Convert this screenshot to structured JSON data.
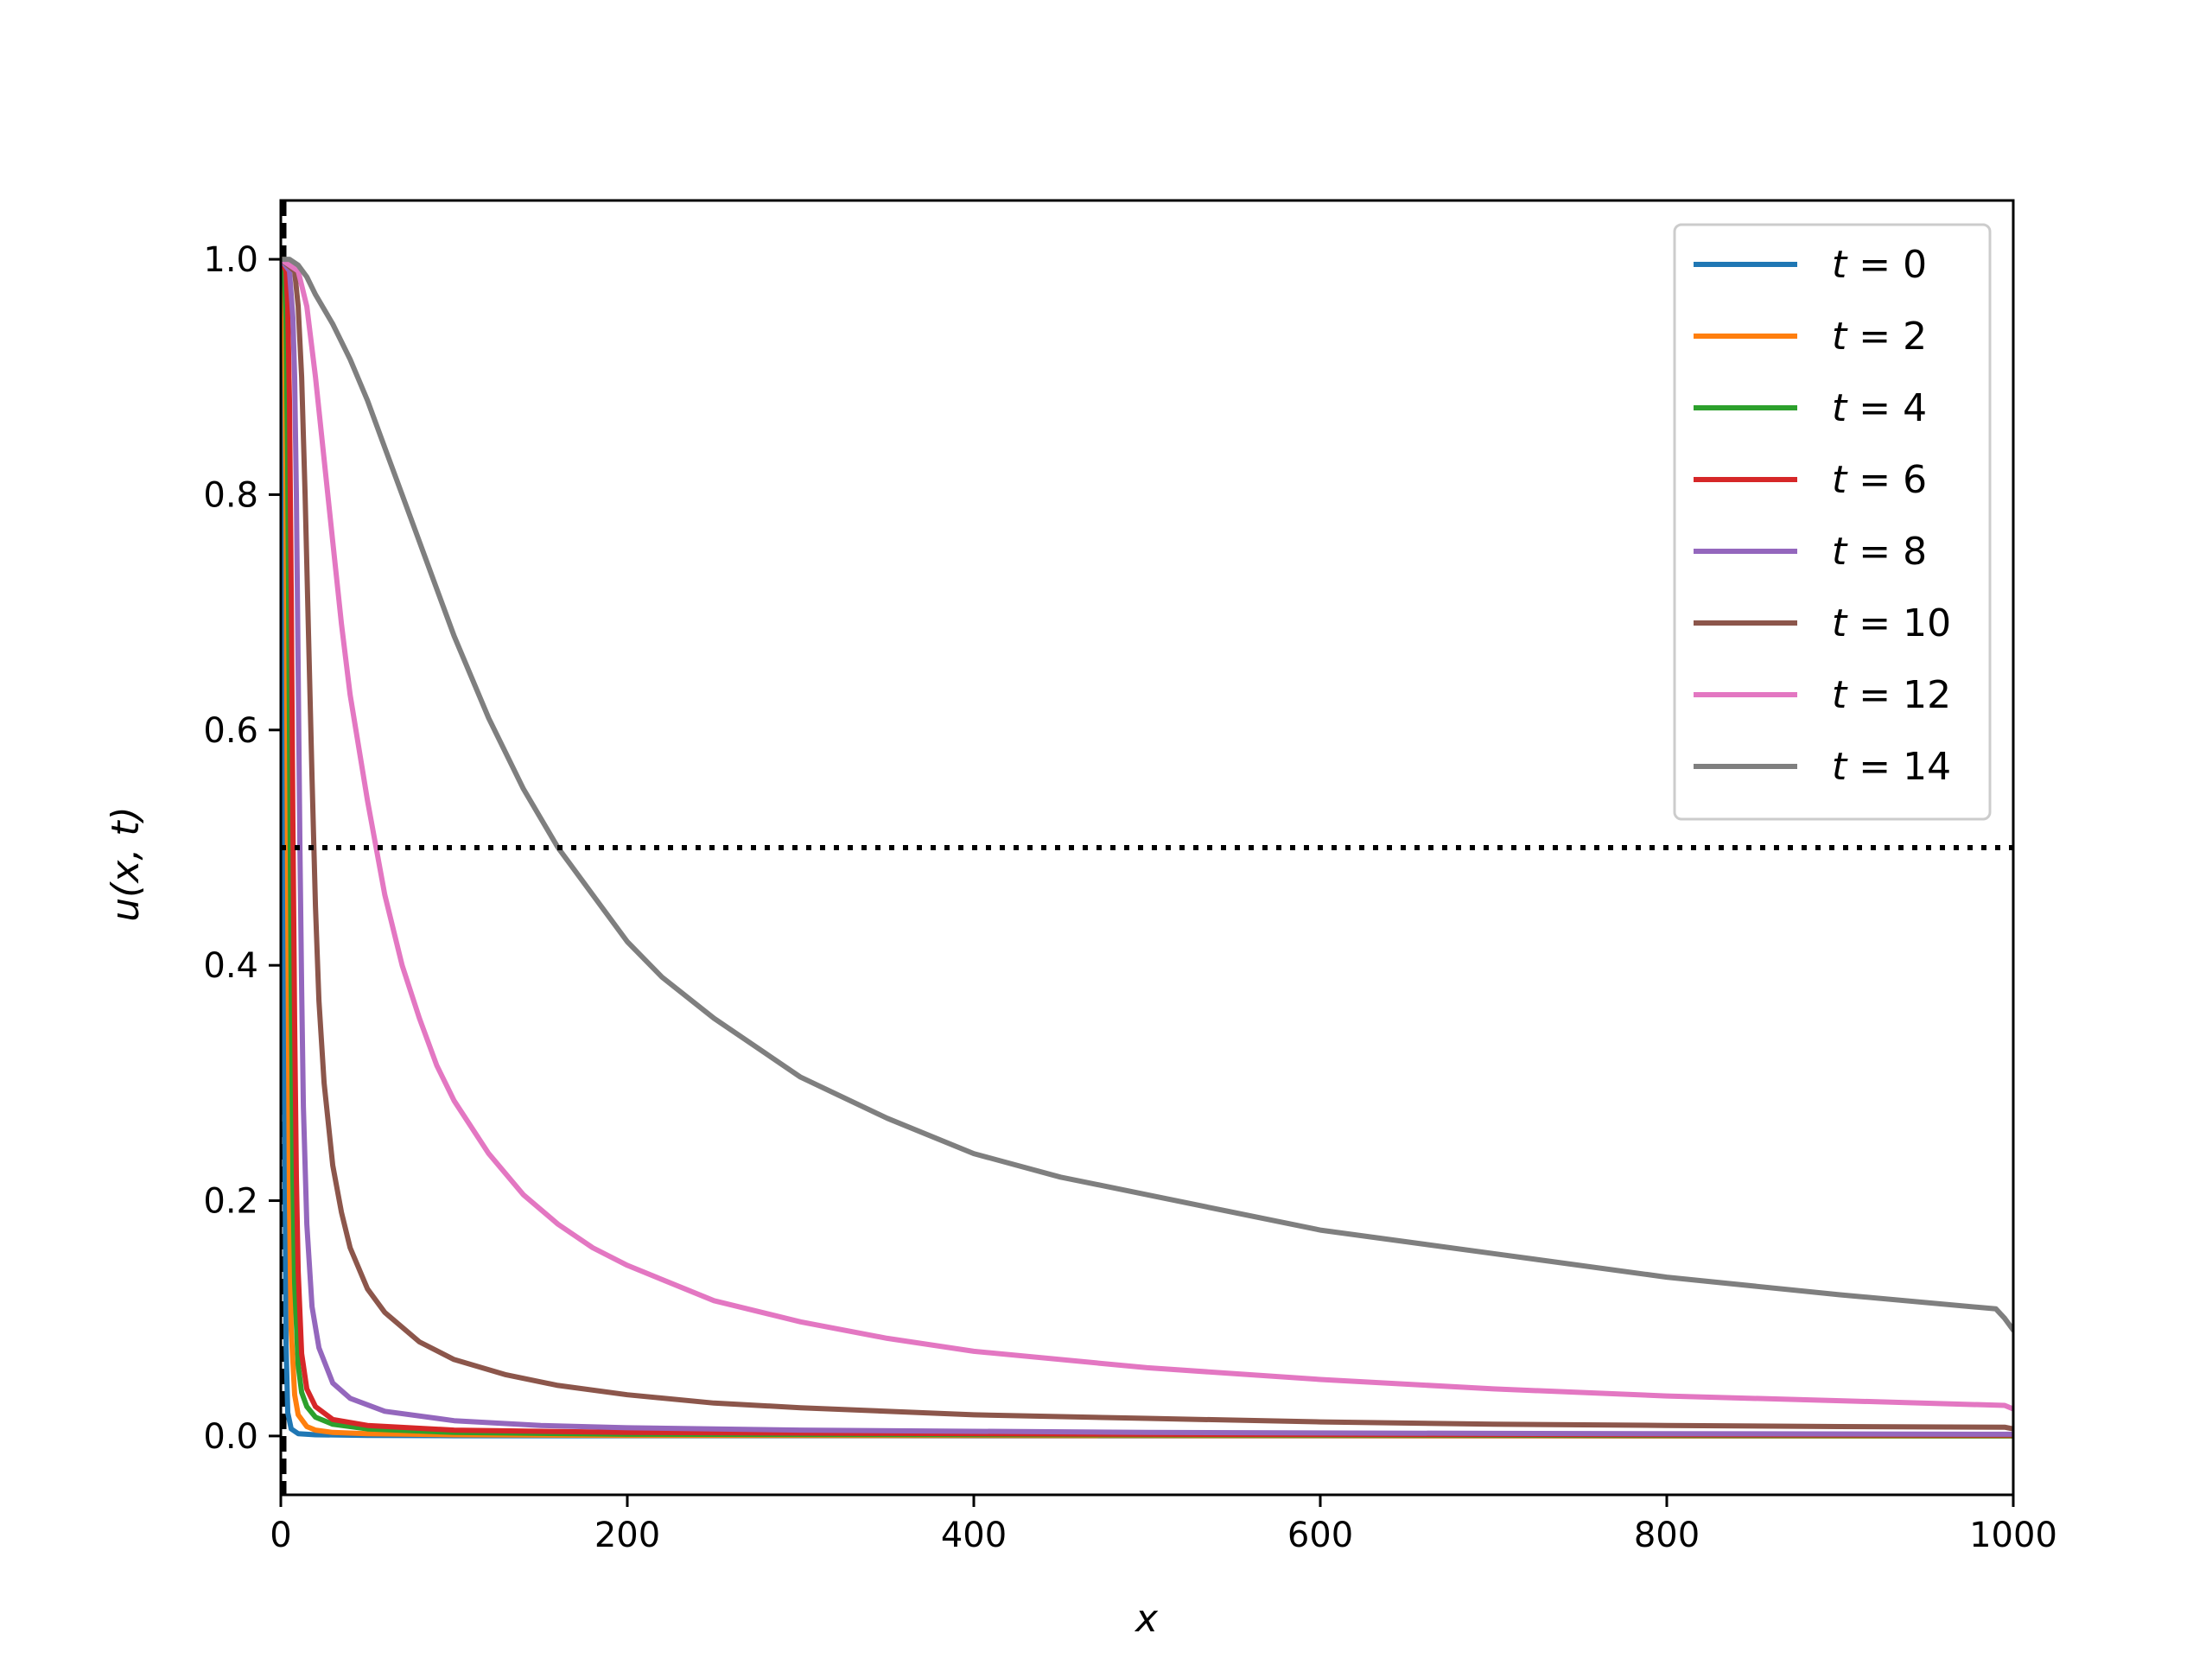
{
  "chart_data": {
    "type": "line",
    "title": "",
    "xlabel": "x",
    "ylabel": "u(x, t)",
    "xlim": [
      0,
      1000
    ],
    "ylim": [
      -0.05,
      1.05
    ],
    "xticks": [
      0,
      200,
      400,
      600,
      800,
      1000
    ],
    "xtick_labels": [
      "0",
      "200",
      "400",
      "600",
      "800",
      "1000"
    ],
    "yticks": [
      0.0,
      0.2,
      0.4,
      0.6,
      0.8,
      1.0
    ],
    "ytick_labels": [
      "0.0",
      "0.2",
      "0.4",
      "0.6",
      "0.8",
      "1.0"
    ],
    "grid": false,
    "legend_position": "upper right",
    "reference_line": {
      "y": 0.5,
      "style": "dotted",
      "color": "#000000"
    },
    "series": [
      {
        "name": "t = 0",
        "color": "#1f77b4",
        "x": [
          0,
          1,
          2,
          3,
          4,
          6,
          10,
          20,
          50,
          100,
          1000
        ],
        "y": [
          1.0,
          0.9,
          0.35,
          0.08,
          0.02,
          0.006,
          0.002,
          0.001,
          0.0005,
          0.0002,
          0.0
        ]
      },
      {
        "name": "t = 2",
        "color": "#ff7f0e",
        "x": [
          0,
          1,
          2,
          3,
          4,
          5,
          6,
          8,
          10,
          15,
          20,
          30,
          50,
          100,
          200,
          1000
        ],
        "y": [
          1.0,
          1.0,
          0.97,
          0.8,
          0.45,
          0.2,
          0.09,
          0.035,
          0.018,
          0.008,
          0.005,
          0.003,
          0.002,
          0.001,
          0.0005,
          0.0
        ]
      },
      {
        "name": "t = 4",
        "color": "#2ca02c",
        "x": [
          0,
          2,
          3,
          4,
          5,
          6,
          7,
          8,
          10,
          12,
          15,
          20,
          30,
          50,
          100,
          200,
          1000
        ],
        "y": [
          1.0,
          0.99,
          0.95,
          0.82,
          0.6,
          0.38,
          0.22,
          0.13,
          0.06,
          0.037,
          0.025,
          0.016,
          0.01,
          0.006,
          0.003,
          0.0015,
          0.0003
        ]
      },
      {
        "name": "t = 6",
        "color": "#d62728",
        "x": [
          0,
          3,
          4,
          5,
          6,
          7,
          8,
          9,
          10,
          12,
          15,
          20,
          30,
          50,
          100,
          200,
          500,
          1000
        ],
        "y": [
          1.0,
          0.99,
          0.96,
          0.88,
          0.72,
          0.52,
          0.35,
          0.22,
          0.14,
          0.07,
          0.04,
          0.025,
          0.014,
          0.009,
          0.005,
          0.003,
          0.0015,
          0.0008
        ]
      },
      {
        "name": "t = 8",
        "color": "#9467bd",
        "x": [
          0,
          5,
          7,
          8,
          9,
          10,
          11,
          12,
          13,
          15,
          18,
          22,
          30,
          40,
          60,
          100,
          150,
          200,
          300,
          500,
          700,
          1000
        ],
        "y": [
          1.0,
          0.99,
          0.95,
          0.9,
          0.8,
          0.65,
          0.5,
          0.38,
          0.28,
          0.18,
          0.11,
          0.075,
          0.045,
          0.032,
          0.021,
          0.013,
          0.009,
          0.007,
          0.005,
          0.003,
          0.0022,
          0.0015
        ]
      },
      {
        "name": "t = 10",
        "color": "#8c564b",
        "x": [
          0,
          8,
          10,
          12,
          14,
          16,
          18,
          20,
          22,
          25,
          30,
          35,
          40,
          50,
          60,
          80,
          100,
          130,
          160,
          200,
          250,
          300,
          400,
          500,
          600,
          700,
          800,
          900,
          995,
          1000
        ],
        "y": [
          1.0,
          0.99,
          0.96,
          0.9,
          0.8,
          0.68,
          0.56,
          0.45,
          0.37,
          0.3,
          0.23,
          0.19,
          0.16,
          0.125,
          0.105,
          0.08,
          0.065,
          0.052,
          0.043,
          0.035,
          0.028,
          0.024,
          0.018,
          0.015,
          0.012,
          0.01,
          0.009,
          0.008,
          0.0075,
          0.006
        ]
      },
      {
        "name": "t = 12",
        "color": "#e377c2",
        "x": [
          0,
          10,
          15,
          20,
          25,
          30,
          35,
          40,
          50,
          60,
          70,
          80,
          90,
          100,
          120,
          140,
          160,
          180,
          200,
          250,
          300,
          350,
          400,
          500,
          600,
          700,
          800,
          900,
          995,
          1000
        ],
        "y": [
          1.0,
          0.99,
          0.96,
          0.9,
          0.83,
          0.76,
          0.69,
          0.63,
          0.54,
          0.46,
          0.4,
          0.355,
          0.315,
          0.285,
          0.24,
          0.205,
          0.18,
          0.16,
          0.145,
          0.115,
          0.097,
          0.083,
          0.072,
          0.058,
          0.048,
          0.04,
          0.034,
          0.03,
          0.026,
          0.023
        ]
      },
      {
        "name": "t = 14",
        "color": "#7f7f7f",
        "x": [
          0,
          5,
          10,
          15,
          20,
          30,
          40,
          50,
          60,
          70,
          80,
          90,
          100,
          120,
          140,
          160,
          180,
          200,
          220,
          250,
          300,
          350,
          400,
          450,
          500,
          600,
          700,
          800,
          900,
          990,
          995,
          1000
        ],
        "y": [
          1.0,
          1.0,
          0.995,
          0.985,
          0.97,
          0.945,
          0.915,
          0.88,
          0.84,
          0.8,
          0.76,
          0.72,
          0.68,
          0.61,
          0.55,
          0.5,
          0.46,
          0.42,
          0.39,
          0.355,
          0.305,
          0.27,
          0.24,
          0.22,
          0.205,
          0.175,
          0.155,
          0.135,
          0.12,
          0.108,
          0.1,
          0.09
        ]
      }
    ]
  }
}
